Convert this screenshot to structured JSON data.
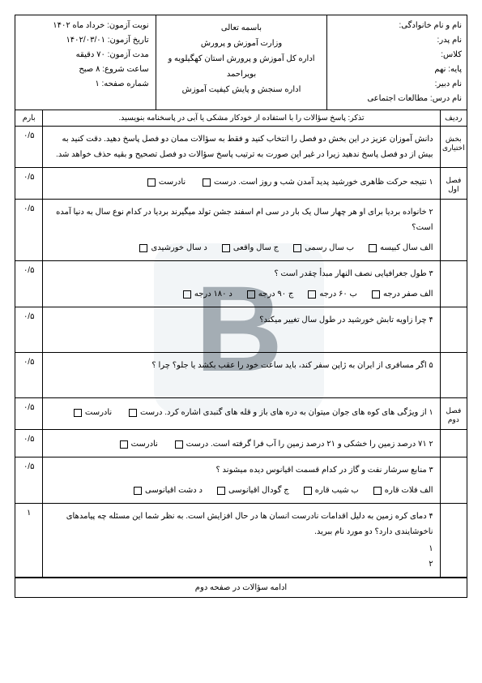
{
  "watermark": "B",
  "header": {
    "right": {
      "l1": "نام و نام خانوادگی:",
      "l2": "نام پدر:",
      "l3": "کلاس:",
      "l4": "پایه: نهم",
      "l5": "نام دبیر:",
      "l6": "نام درس: مطالعات اجتماعی"
    },
    "center": {
      "l1": "باسمه تعالی",
      "l2": "وزارت آموزش و پرورش",
      "l3": "اداره کل آموزش و پرورش استان کهگیلویه و بویراحمد",
      "l4": "اداره سنجش و پایش کیفیت آموزش"
    },
    "left": {
      "l1": "نوبت آزمون: خرداد ماه ۱۴۰۲",
      "l2": "تاریخ آزمون: ۱۴۰۲/۰۳/۰۱",
      "l3": "مدت آزمون: ۷۰ دقیقه",
      "l4": "ساعت شروع: ۸ صبح",
      "l5": "شماره صفحه: ۱"
    }
  },
  "meta": {
    "c1": "ردیف",
    "c2": "تذکر: پاسخ سؤالات را با استفاده از خودکار مشکی یا آبی در پاسخنامه بنویسید.",
    "c3": "بارم"
  },
  "sections": {
    "opt_label": "بخش اختیاری",
    "chap1": "فصل اول",
    "chap2": "فصل دوم"
  },
  "intro": {
    "text": "دانش آموزان عزیز در این بخش دو فصل را انتخاب کنید و فقط به سؤالات ممان دو فصل پاسخ دهید. دقت کنید به بیش از دو فصل پاسخ ندهید زیرا در غیر این صورت به ترتیب پاسخ سؤالات دو فصل تصحیح و بقیه حذف خواهد شد.",
    "score": "۰/۵"
  },
  "q": [
    {
      "n": "۱",
      "text": "نتیجه حرکت ظاهری خورشید پدید آمدن شب و روز است.",
      "opts": [
        "درست",
        "نادرست"
      ],
      "score": "۰/۵"
    },
    {
      "n": "۲",
      "text": "خانواده بردیا برای او هر چهار سال یک بار در سی ام اسفند جشن تولد میگیرند بردیا در کدام نوع سال به دنیا آمده است؟",
      "opts": [
        "الف  سال کبیسه",
        "ب  سال رسمی",
        "ج  سال واقعی",
        "د  سال خورشیدی"
      ],
      "score": "۰/۵"
    },
    {
      "n": "۳",
      "text": "طول جغرافیایی نصف النهار مبدأ چقدر است ؟",
      "opts": [
        "الف  صفر درجه",
        "ب  ۶۰ درجه",
        "ج  ۹۰ درجه",
        "د  ۱۸۰ درجه"
      ],
      "score": "۰/۵"
    },
    {
      "n": "۴",
      "text": "چرا زاویه تابش خورشید در طول سال تغییر میکند؟",
      "opts": [],
      "score": "۰/۵"
    },
    {
      "n": "۵",
      "text": "اگر مسافری از ایران به ژاپن سفر کند، باید ساعت خود را عقب بکشد یا جلو؟ چرا ؟",
      "opts": [],
      "score": "۰/۵"
    },
    {
      "n": "۱",
      "text": "از ویژگی های کوه های جوان میتوان به دره های باز و قله های گنبدی اشاره کرد.",
      "opts": [
        "درست",
        "نادرست"
      ],
      "score": "۰/۵",
      "chap": 2
    },
    {
      "n": "۲",
      "text": "۷۱ درصد زمین را خشکی و ۲۱ درصد زمین را آب فرا گرفته است.",
      "opts": [
        "درست",
        "نادرست"
      ],
      "score": "۰/۵"
    },
    {
      "n": "۳",
      "text": "منابع سرشار نفت و گاز در کدام قسمت اقیانوس دیده میشوند ؟",
      "opts": [
        "الف  فلات قاره",
        "ب  شیب قاره",
        "ج  گودال اقیانوسی",
        "د  دشت اقیانوسی"
      ],
      "score": "۰/۵"
    },
    {
      "n": "۴",
      "text": "دمای کره زمین به دلیل اقدامات نادرست انسان ها در حال افزایش است. به نظر شما این مسئله چه پیامدهای ناخوشایندی دارد؟ دو مورد نام ببرید.",
      "sub": [
        "۱",
        "۲"
      ],
      "opts": [],
      "score": "۱"
    }
  ],
  "footer": "ادامه سؤالات در صفحه دوم"
}
